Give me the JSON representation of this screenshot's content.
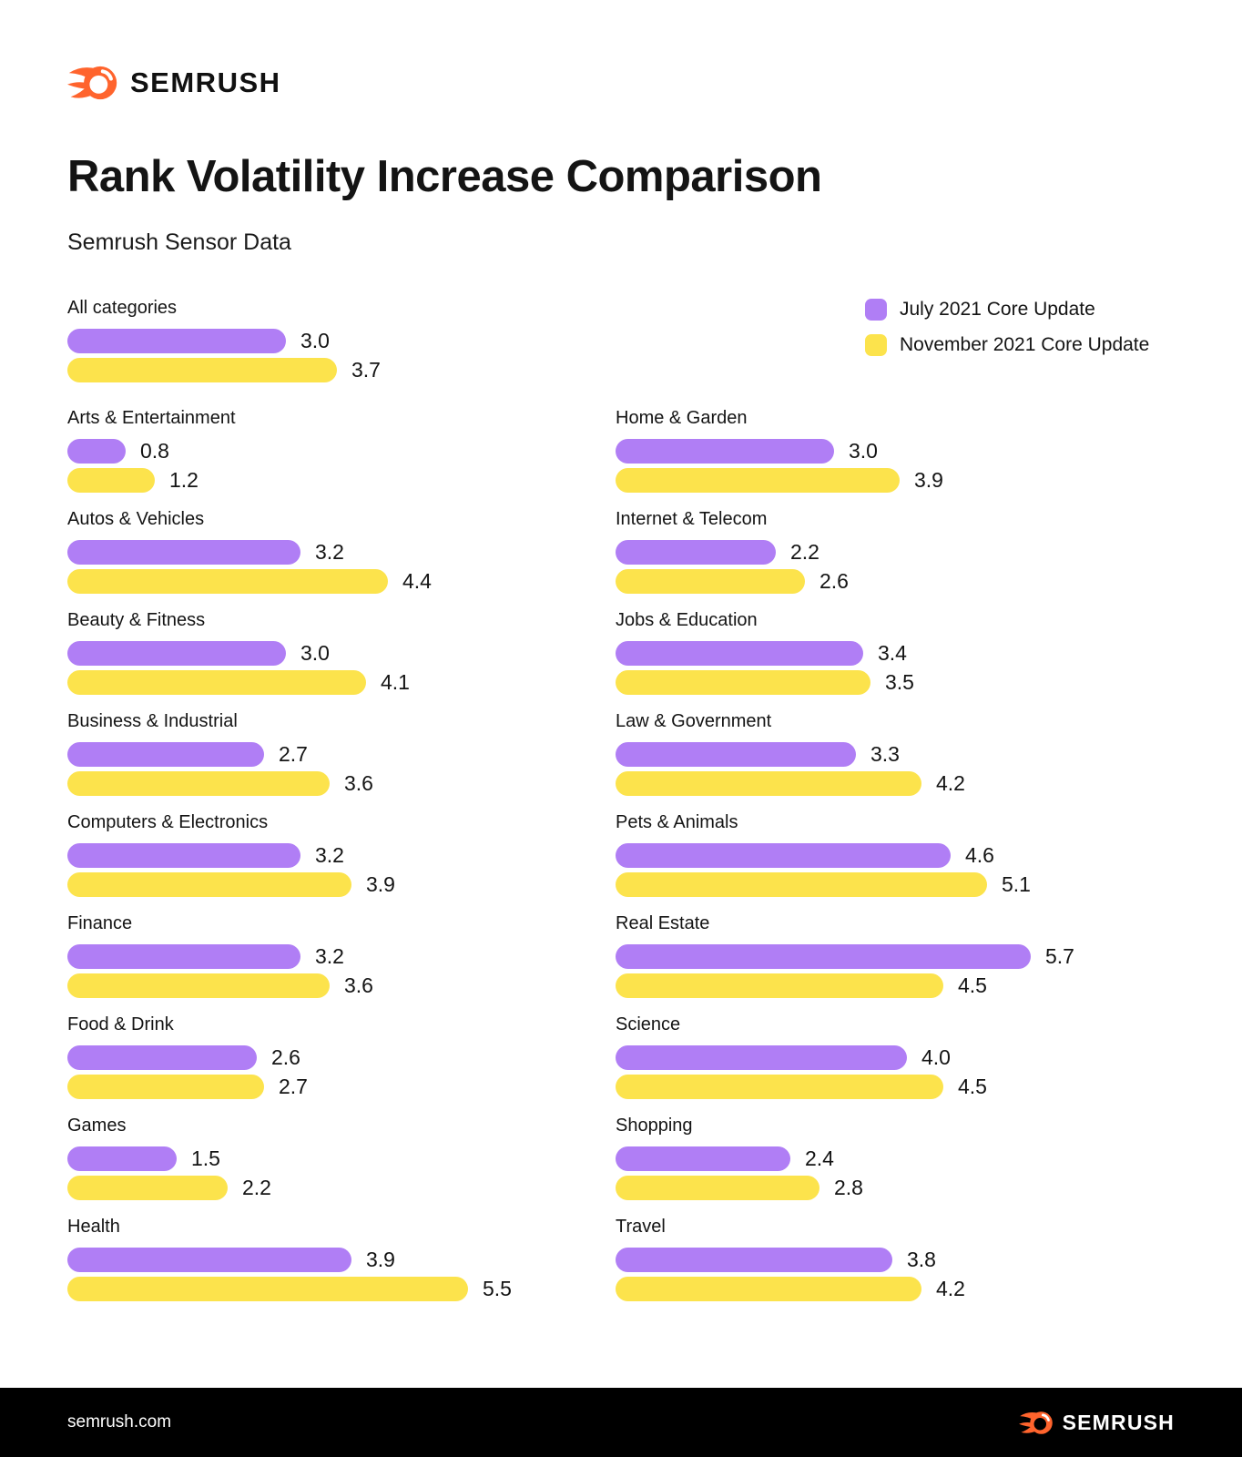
{
  "brand": {
    "name": "SEMRUSH",
    "logo_color": "#FF642D",
    "footer_url": "semrush.com"
  },
  "header": {
    "title": "Rank Volatility Increase Comparison",
    "subtitle": "Semrush Sensor Data"
  },
  "legend": {
    "items": [
      {
        "label": "July 2021 Core Update",
        "color": "#B07EF5"
      },
      {
        "label": "November 2021 Core Update",
        "color": "#FCE34C"
      }
    ]
  },
  "chart_data": {
    "type": "bar",
    "orientation": "horizontal",
    "title": "Rank Volatility Increase Comparison",
    "subtitle": "Semrush Sensor Data",
    "legend_position": "top-right",
    "value_range": [
      0,
      6
    ],
    "grid": false,
    "series_names": [
      "July 2021 Core Update",
      "November 2021 Core Update"
    ],
    "series_colors": [
      "#B07EF5",
      "#FCE34C"
    ],
    "featured_group": {
      "category": "All categories",
      "values": [
        3.0,
        3.7
      ]
    },
    "columns": {
      "left": [
        {
          "category": "Arts & Entertainment",
          "values": [
            0.8,
            1.2
          ]
        },
        {
          "category": "Autos & Vehicles",
          "values": [
            3.2,
            4.4
          ]
        },
        {
          "category": "Beauty & Fitness",
          "values": [
            3.0,
            4.1
          ]
        },
        {
          "category": "Business & Industrial",
          "values": [
            2.7,
            3.6
          ]
        },
        {
          "category": "Computers & Electronics",
          "values": [
            3.2,
            3.9
          ]
        },
        {
          "category": "Finance",
          "values": [
            3.2,
            3.6
          ]
        },
        {
          "category": "Food & Drink",
          "values": [
            2.6,
            2.7
          ]
        },
        {
          "category": "Games",
          "values": [
            1.5,
            2.2
          ]
        },
        {
          "category": "Health",
          "values": [
            3.9,
            5.5
          ]
        }
      ],
      "right": [
        {
          "category": "Home & Garden",
          "values": [
            3.0,
            3.9
          ]
        },
        {
          "category": "Internet & Telecom",
          "values": [
            2.2,
            2.6
          ]
        },
        {
          "category": "Jobs & Education",
          "values": [
            3.4,
            3.5
          ]
        },
        {
          "category": "Law & Government",
          "values": [
            3.3,
            4.2
          ]
        },
        {
          "category": "Pets & Animals",
          "values": [
            4.6,
            5.1
          ]
        },
        {
          "category": "Real Estate",
          "values": [
            5.7,
            4.5
          ]
        },
        {
          "category": "Science",
          "values": [
            4.0,
            4.5
          ]
        },
        {
          "category": "Shopping",
          "values": [
            2.4,
            2.8
          ]
        },
        {
          "category": "Travel",
          "values": [
            3.8,
            4.2
          ]
        }
      ]
    }
  }
}
